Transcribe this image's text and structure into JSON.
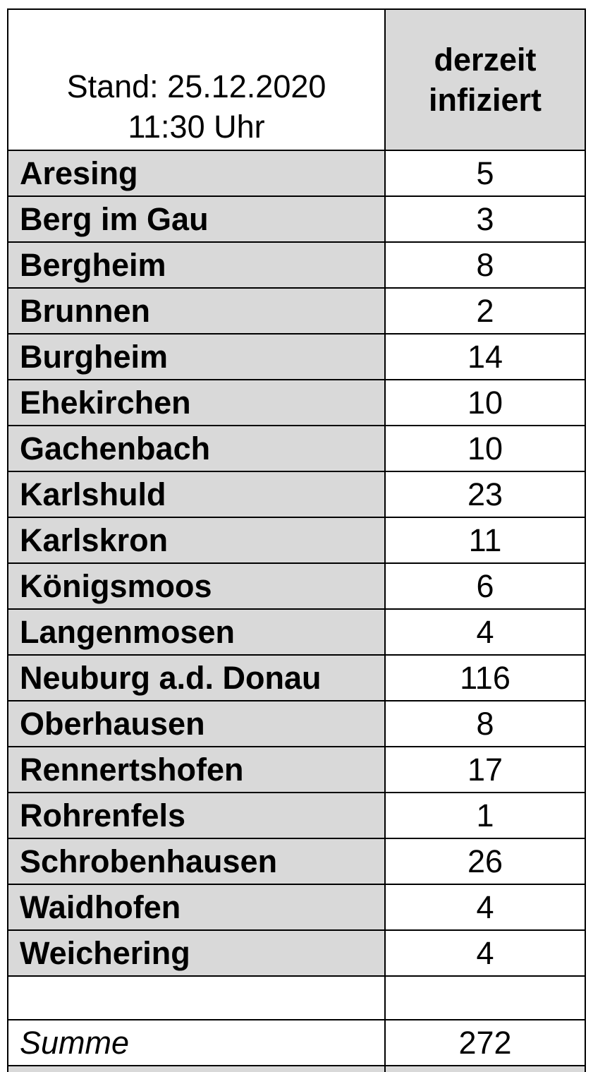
{
  "header": {
    "stand_line1": "Stand: 25.12.2020",
    "stand_line2": "11:30 Uhr",
    "value_col_line1": "derzeit",
    "value_col_line2": "infiziert"
  },
  "rows": [
    {
      "name": "Aresing",
      "value": 5
    },
    {
      "name": "Berg im Gau",
      "value": 3
    },
    {
      "name": "Bergheim",
      "value": 8
    },
    {
      "name": "Brunnen",
      "value": 2
    },
    {
      "name": "Burgheim",
      "value": 14
    },
    {
      "name": "Ehekirchen",
      "value": 10
    },
    {
      "name": "Gachenbach",
      "value": 10
    },
    {
      "name": "Karlshuld",
      "value": 23
    },
    {
      "name": "Karlskron",
      "value": 11
    },
    {
      "name": "Königsmoos",
      "value": 6
    },
    {
      "name": "Langenmosen",
      "value": 4
    },
    {
      "name": "Neuburg a.d. Donau",
      "value": 116
    },
    {
      "name": "Oberhausen",
      "value": 8
    },
    {
      "name": "Rennertshofen",
      "value": 17
    },
    {
      "name": "Rohrenfels",
      "value": 1
    },
    {
      "name": "Schrobenhausen",
      "value": 26
    },
    {
      "name": "Waidhofen",
      "value": 4
    },
    {
      "name": "Weichering",
      "value": 4
    }
  ],
  "total": {
    "label": "Summe",
    "value": 272
  },
  "colors": {
    "cell_gray": "#d9d9d9",
    "border": "#000000",
    "background": "#ffffff"
  },
  "chart_data": {
    "type": "table",
    "title": "Stand: 25.12.2020 11:30 Uhr",
    "value_column": "derzeit infiziert",
    "categories": [
      "Aresing",
      "Berg im Gau",
      "Bergheim",
      "Brunnen",
      "Burgheim",
      "Ehekirchen",
      "Gachenbach",
      "Karlshuld",
      "Karlskron",
      "Königsmoos",
      "Langenmosen",
      "Neuburg a.d. Donau",
      "Oberhausen",
      "Rennertshofen",
      "Rohrenfels",
      "Schrobenhausen",
      "Waidhofen",
      "Weichering"
    ],
    "values": [
      5,
      3,
      8,
      2,
      14,
      10,
      10,
      23,
      11,
      6,
      4,
      116,
      8,
      17,
      1,
      26,
      4,
      4
    ],
    "total_label": "Summe",
    "total_value": 272
  }
}
